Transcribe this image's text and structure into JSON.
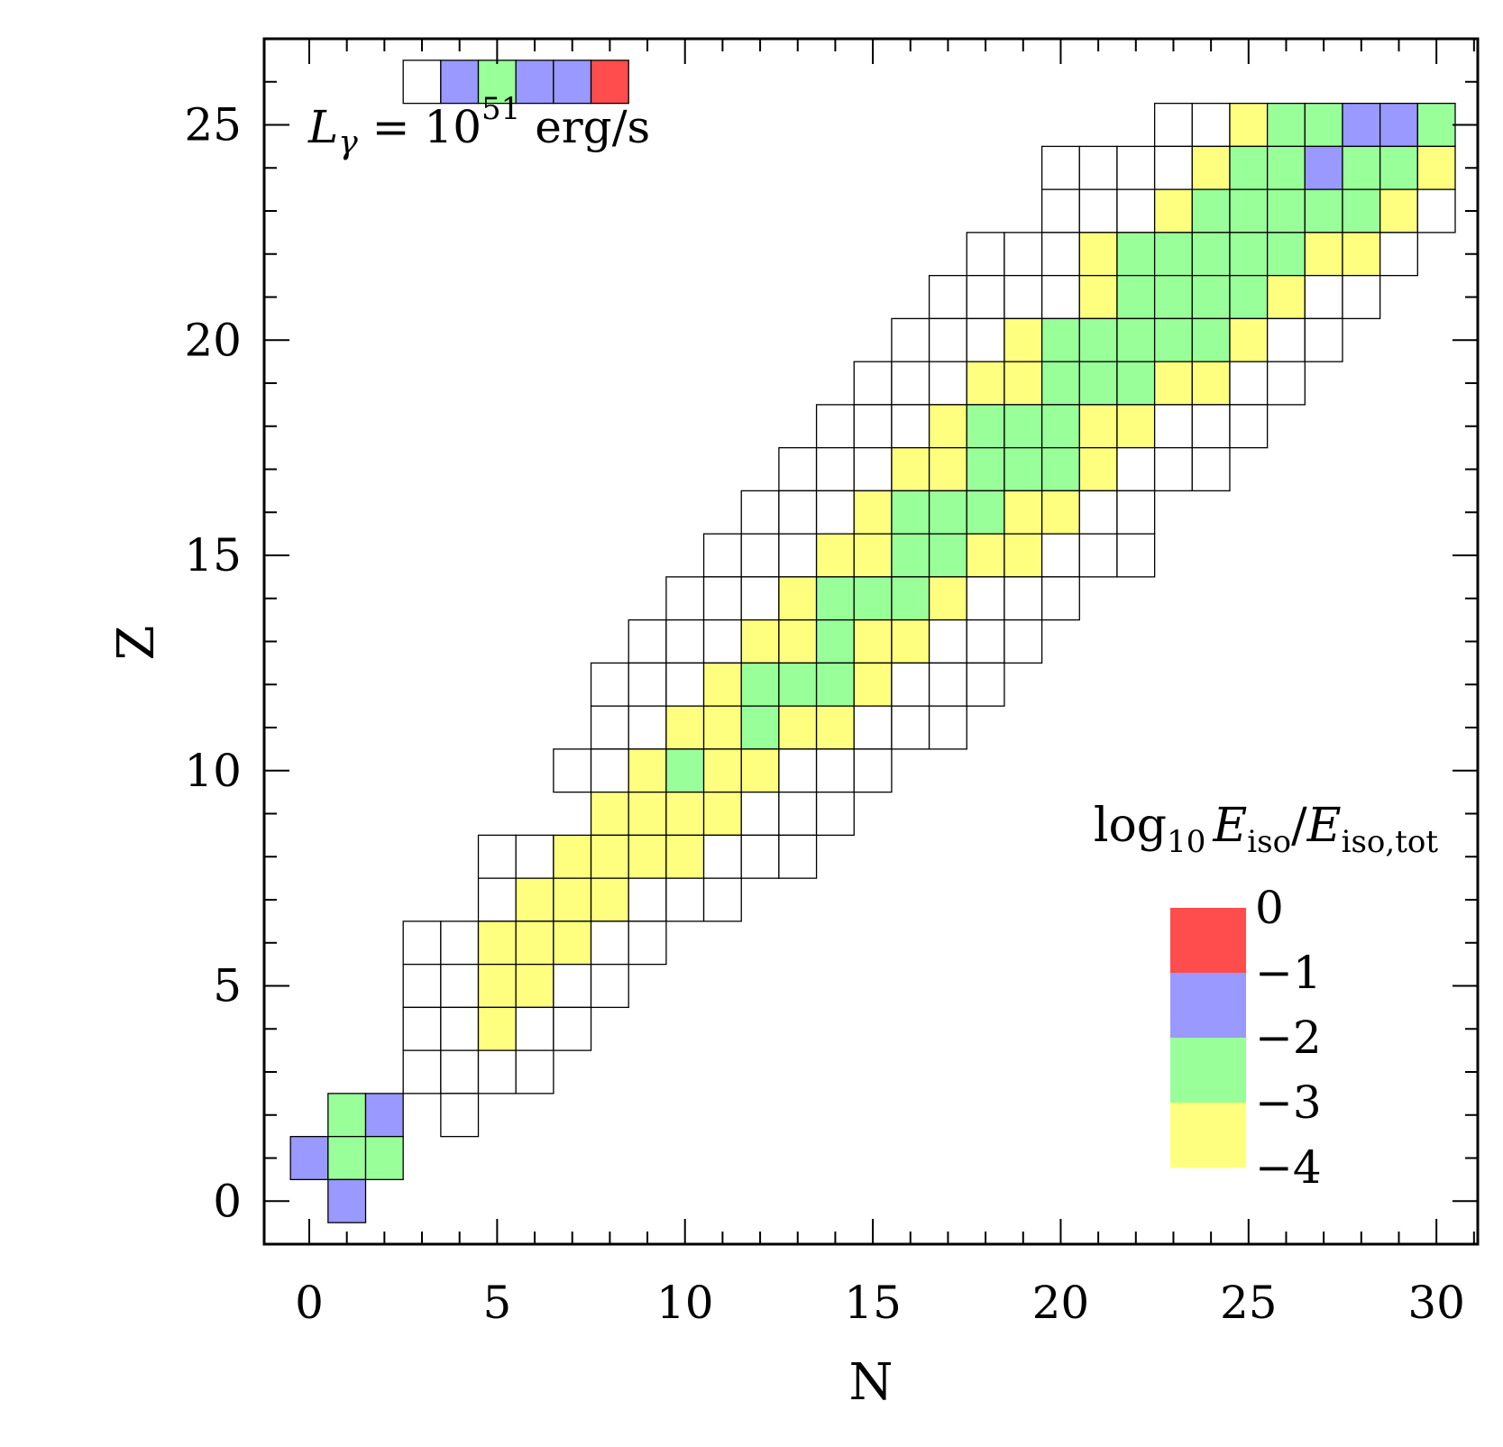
{
  "chart_data": {
    "type": "heatmap",
    "xlabel": "N",
    "ylabel": "Z",
    "xlim": [
      -1.2,
      31.1
    ],
    "ylim": [
      -1.0,
      27.0
    ],
    "x_ticks": [
      0,
      5,
      10,
      15,
      20,
      25,
      30
    ],
    "y_ticks": [
      0,
      5,
      10,
      15,
      20,
      25
    ],
    "annotation": {
      "main": "L",
      "subscript": "γ",
      "rest": " = 10",
      "superscript": "51",
      "unit": " erg/s"
    },
    "legend": {
      "title_prefix": "log",
      "title_base": "10",
      "title_E1": "E",
      "title_E1_sub": "iso",
      "title_slash": "/",
      "title_E2": "E",
      "title_E2_sub": "iso,tot",
      "position": "right-center",
      "ticks": [
        "0",
        "−1",
        "−2",
        "−3",
        "−4"
      ],
      "bands": [
        {
          "level": 0,
          "color": "#ff4c4c"
        },
        {
          "level": -1,
          "color": "#9999ff"
        },
        {
          "level": -2,
          "color": "#99ff99"
        },
        {
          "level": -3,
          "color": "#ffff7f"
        }
      ]
    },
    "colors": {
      "0": "#ff4c4c",
      "1": "#9999ff",
      "2": "#99ff99",
      "3": "#ffff7f",
      "w": "#ffffff"
    },
    "rows": [
      {
        "Z": 26,
        "cells": "3:w 1 2 1 1 0"
      },
      {
        "Z": 25,
        "cells": "23:w 24:w 25:3 26:2 27:2 28:1 29:1 30:2"
      },
      {
        "Z": 24,
        "cells": "20:w 21:w 22:w 23:w 24:3 25:2 26:2 27:1 28:2 29:2 30:3"
      },
      {
        "Z": 23,
        "cells": "20:w 21:w 22:w 23:3 24:2 25:2 26:2 27:2 28:2 29:3 30:w"
      },
      {
        "Z": 22,
        "cells": "18:w 19:w 20:w 21:3 22:2 23:2 24:2 25:2 26:2 27:3 28:3 29:w"
      },
      {
        "Z": 21,
        "cells": "17:w 18:w 19:w 20:w 21:3 22:2 23:2 24:2 25:2 26:3 27:w 28:w"
      },
      {
        "Z": 20,
        "cells": "16:w 17:w 18:w 19:3 20:2 21:2 22:2 23:2 24:2 25:3 26:w 27:w"
      },
      {
        "Z": 19,
        "cells": "15:w 16:w 17:w 18:3 19:3 20:2 21:2 22:2 23:3 24:3 25:w 26:w"
      },
      {
        "Z": 18,
        "cells": "14:w 15:w 16:w 17:3 18:2 19:2 20:2 21:3 22:3 23:w 24:w 25:w"
      },
      {
        "Z": 17,
        "cells": "13:w 14:w 15:w 16:3 17:3 18:2 19:2 20:2 21:3 22:w 23:w 24:w"
      },
      {
        "Z": 16,
        "cells": "12:w 13:w 14:w 15:3 16:2 17:2 18:2 19:3 20:3 21:w 22:w"
      },
      {
        "Z": 15,
        "cells": "11:w 12:w 13:w 14:3 15:3 16:2 17:2 18:3 19:3 20:w 21:w 22:w"
      },
      {
        "Z": 14,
        "cells": "10:w 11:w 12:w 13:3 14:2 15:2 16:2 17:3 18:w 19:w 20:w"
      },
      {
        "Z": 13,
        "cells": "9:w 10:w 11:w 12:3 13:3 14:2 15:3 16:3 17:w 18:w 19:w"
      },
      {
        "Z": 12,
        "cells": "8:w 9:w 10:w 11:3 12:2 13:2 14:2 15:3 16:w 17:w 18:w"
      },
      {
        "Z": 11,
        "cells": "8:w 9:w 10:3 11:3 12:2 13:3 14:3 15:w 16:w 17:w"
      },
      {
        "Z": 10,
        "cells": "7:w 8:w 9:3 10:2 11:3 12:3 13:w 14:w 15:w"
      },
      {
        "Z": 9,
        "cells": "8:3 9:3 10:3 11:3 12:w 13:w 14:w"
      },
      {
        "Z": 8,
        "cells": "5:w 6:w 7:3 8:3 9:3 10:3 11:w 12:w 13:w"
      },
      {
        "Z": 7,
        "cells": "5:w 6:3 7:3 8:3 9:w 10:w 11:w"
      },
      {
        "Z": 6,
        "cells": "3:w 4:w 5:3 6:3 7:3 8:w 9:w"
      },
      {
        "Z": 5,
        "cells": "3:w 4:w 5:3 6:3 7:w 8:w"
      },
      {
        "Z": 4,
        "cells": "3:w 4:w 5:3 6:w 7:w"
      },
      {
        "Z": 3,
        "cells": "3:w 4:w 5:w 6:w"
      },
      {
        "Z": 2,
        "cells": "1:2 2:1 4:w"
      },
      {
        "Z": 1,
        "cells": "0:1 1:2 2:2"
      },
      {
        "Z": 0,
        "cells": "1:1"
      }
    ]
  }
}
